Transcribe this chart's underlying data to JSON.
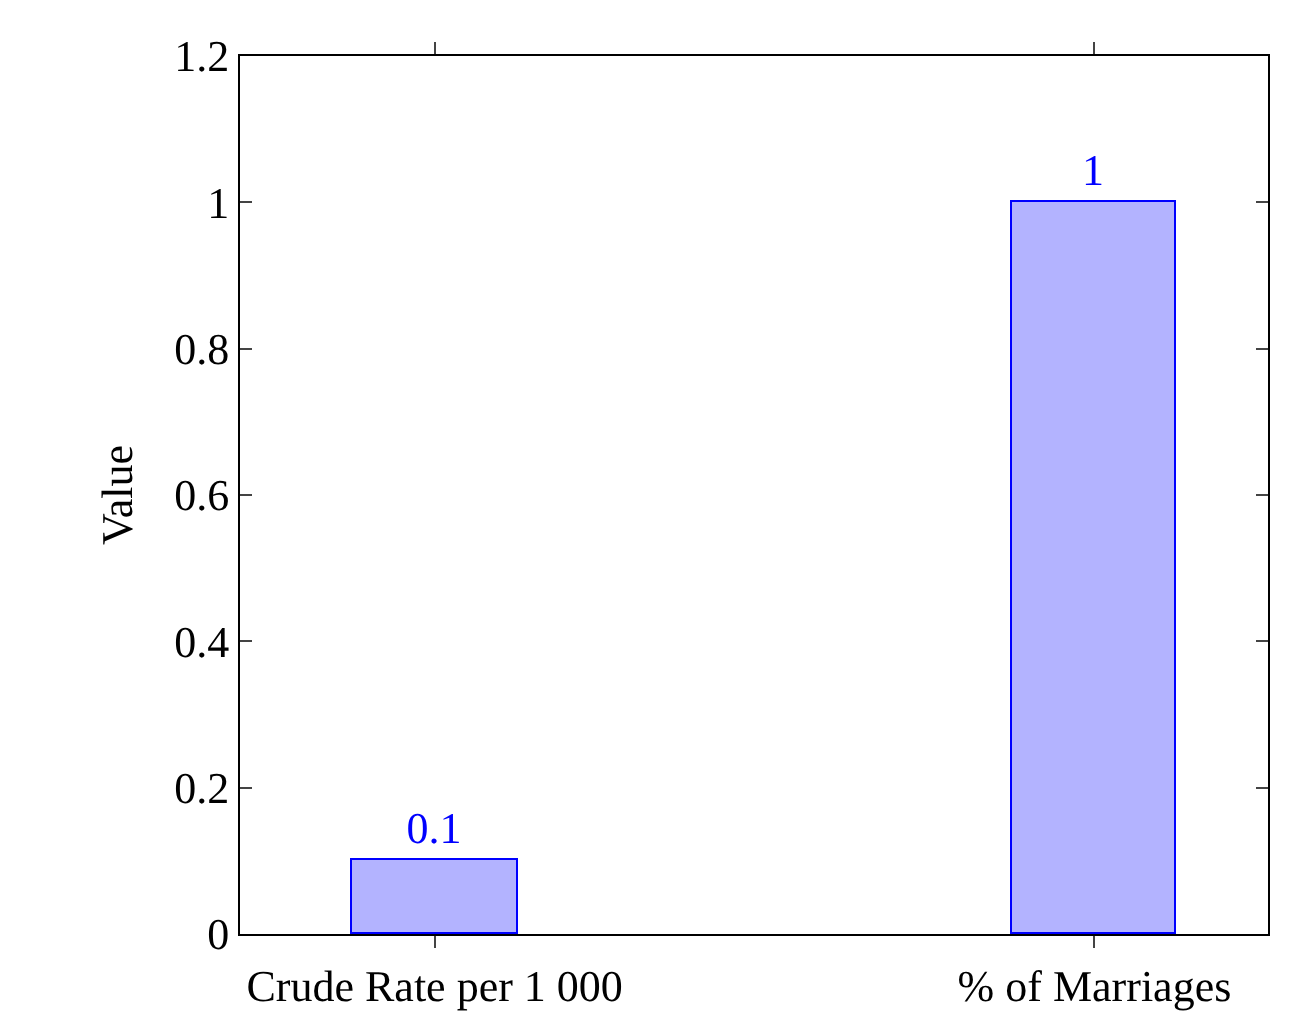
{
  "chart_data": {
    "type": "bar",
    "ylabel": "Value",
    "categories": [
      "Crude Rate per 1 000",
      "% of Marriages"
    ],
    "values": [
      0.1,
      1
    ],
    "color": "#b3b3ff",
    "ylim": [
      0,
      1.2
    ],
    "yticks": [
      0,
      0.2,
      0.4,
      0.6,
      0.8,
      1,
      1.2
    ],
    "data_labels": true
  }
}
